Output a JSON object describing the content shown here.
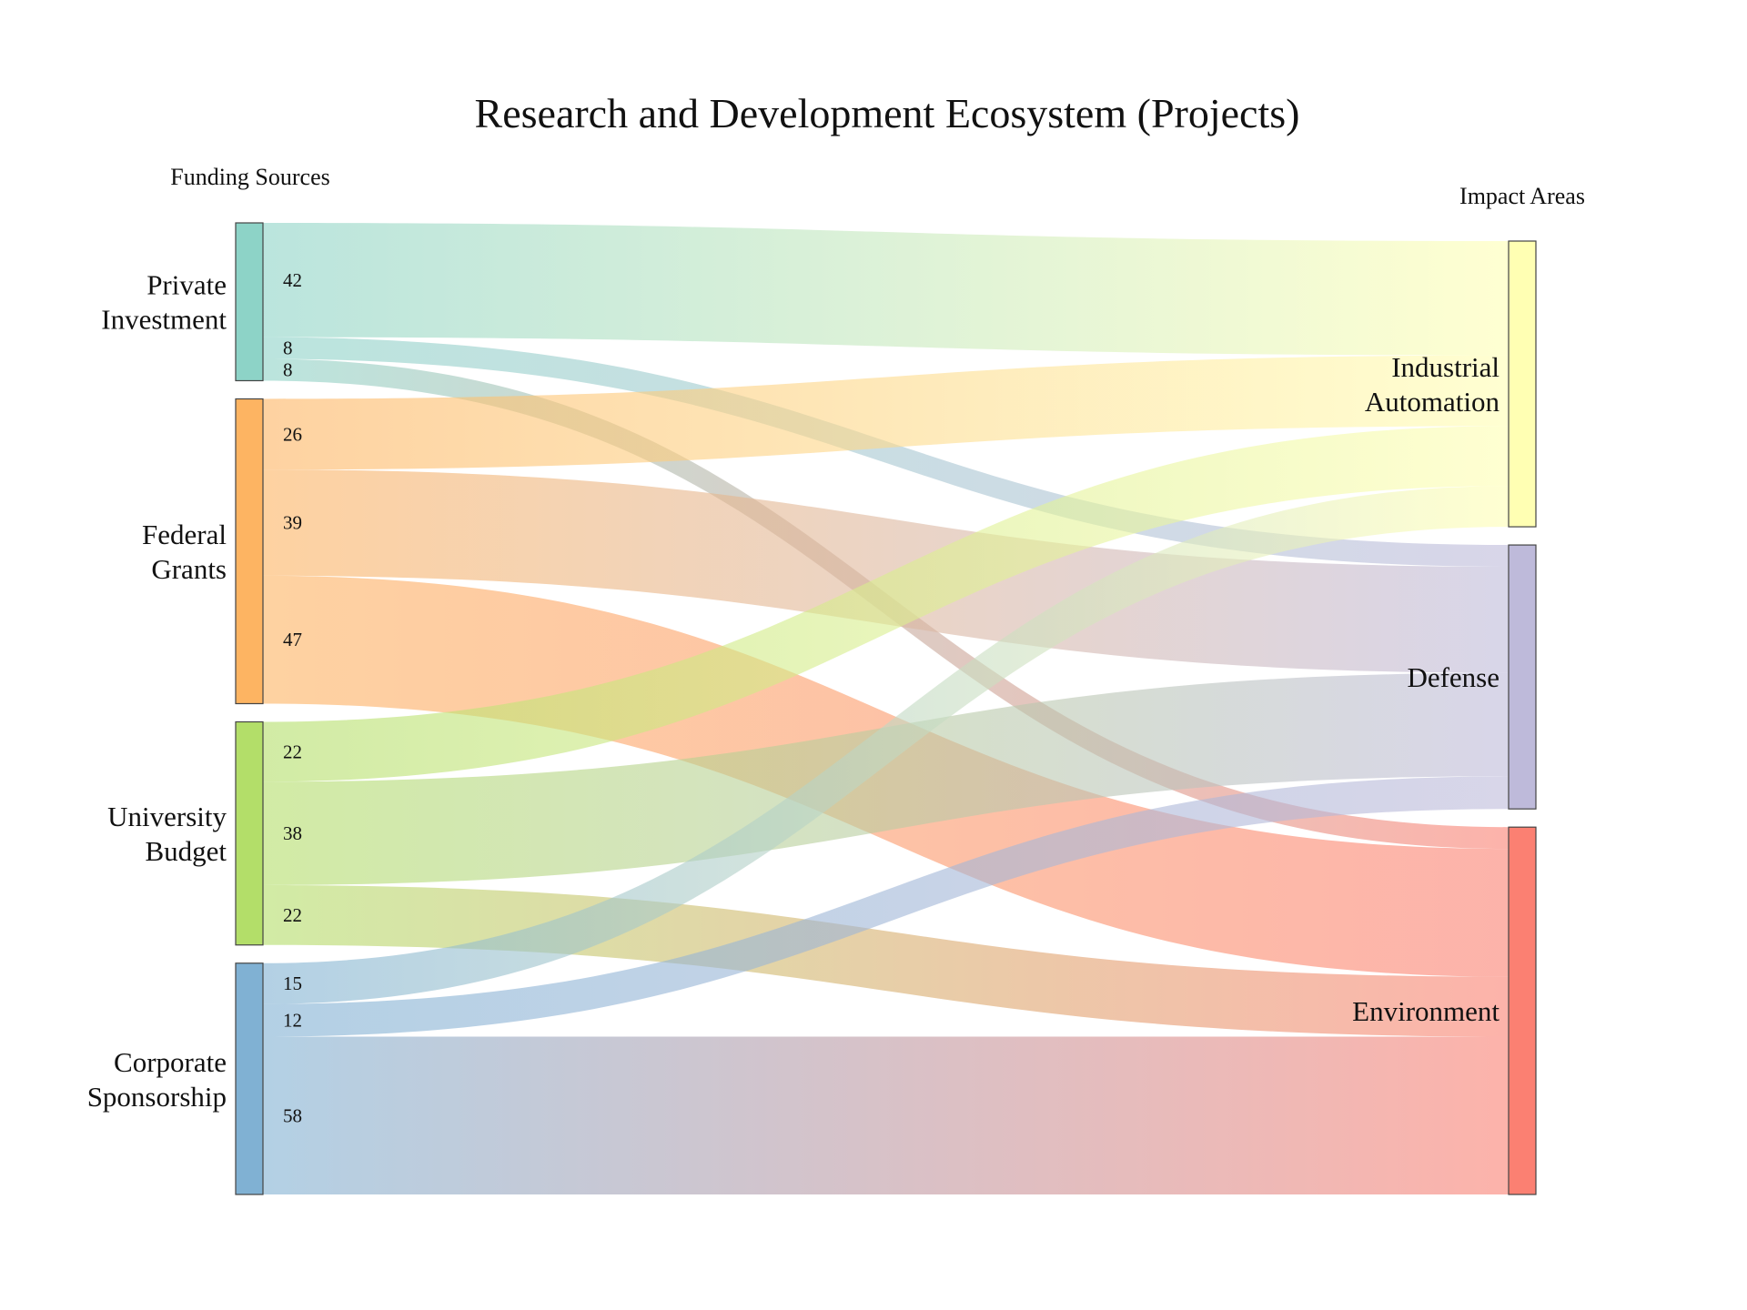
{
  "chart_data": {
    "type": "sankey",
    "title": "Research and Development Ecosystem (Projects)",
    "left_header": "Funding Sources",
    "right_header": "Impact Areas",
    "sources": [
      {
        "name": "Private\nInvestment",
        "color": "#8dd3c7"
      },
      {
        "name": "Federal\nGrants",
        "color": "#fdb462"
      },
      {
        "name": "University\nBudget",
        "color": "#b3de69"
      },
      {
        "name": "Corporate\nSponsorship",
        "color": "#80b1d3"
      }
    ],
    "targets": [
      {
        "name": "Industrial\nAutomation",
        "color": "#ffffb3"
      },
      {
        "name": "Defense",
        "color": "#bebada"
      },
      {
        "name": "Environment",
        "color": "#fb8072"
      }
    ],
    "flows": [
      {
        "source": 0,
        "target": 0,
        "value": 42
      },
      {
        "source": 0,
        "target": 1,
        "value": 8
      },
      {
        "source": 0,
        "target": 2,
        "value": 8
      },
      {
        "source": 1,
        "target": 0,
        "value": 26
      },
      {
        "source": 1,
        "target": 1,
        "value": 39
      },
      {
        "source": 1,
        "target": 2,
        "value": 47
      },
      {
        "source": 2,
        "target": 0,
        "value": 22
      },
      {
        "source": 2,
        "target": 1,
        "value": 38
      },
      {
        "source": 2,
        "target": 2,
        "value": 22
      },
      {
        "source": 3,
        "target": 0,
        "value": 15
      },
      {
        "source": 3,
        "target": 1,
        "value": 12
      },
      {
        "source": 3,
        "target": 2,
        "value": 58
      }
    ]
  }
}
